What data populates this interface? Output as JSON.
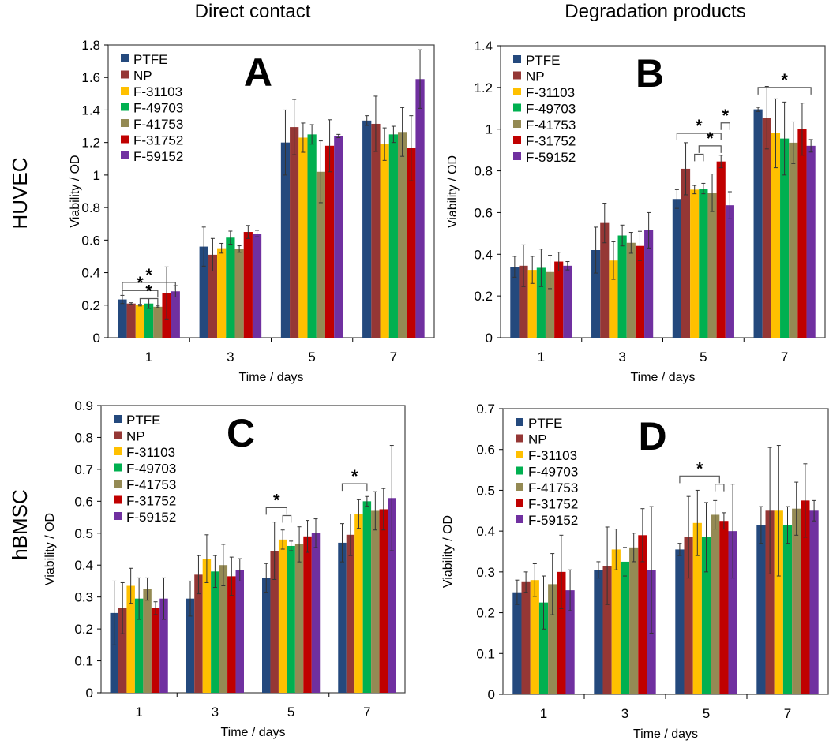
{
  "column_titles": [
    "Direct contact",
    "Degradation products"
  ],
  "row_titles": [
    "HUVEC",
    "hBMSC"
  ],
  "series_colors": {
    "PTFE": "#24497d",
    "NP": "#953735",
    "F-31103": "#ffc000",
    "F-49703": "#00b050",
    "F-41753": "#948a54",
    "F-31752": "#c00000",
    "F-59152": "#7030a0"
  },
  "chart_data": [
    {
      "type": "bar",
      "panel_label": "A",
      "xlabel": "Time / days",
      "ylabel": "Viability / OD",
      "categories": [
        "1",
        "3",
        "5",
        "7"
      ],
      "ylim": [
        0,
        1.8
      ],
      "yticks": [
        "0",
        "0.2",
        "0.4",
        "0.6",
        "0.8",
        "1",
        "1.2",
        "1.4",
        "1.6",
        "1.8"
      ],
      "legend": "top-left",
      "series": [
        {
          "name": "PTFE",
          "values": [
            0.235,
            0.56,
            1.2,
            1.335
          ],
          "errors": [
            0.025,
            0.12,
            0.2,
            0.03
          ]
        },
        {
          "name": "NP",
          "values": [
            0.21,
            0.51,
            1.295,
            1.315
          ],
          "errors": [
            0.005,
            0.1,
            0.17,
            0.17
          ]
        },
        {
          "name": "F-31103",
          "values": [
            0.2,
            0.55,
            1.23,
            1.19
          ],
          "errors": [
            0.005,
            0.03,
            0.09,
            0.1
          ]
        },
        {
          "name": "F-49703",
          "values": [
            0.21,
            0.615,
            1.25,
            1.25
          ],
          "errors": [
            0.03,
            0.04,
            0.06,
            0.05
          ]
        },
        {
          "name": "F-41753",
          "values": [
            0.19,
            0.545,
            1.02,
            1.265
          ],
          "errors": [
            0.005,
            0.02,
            0.19,
            0.15
          ]
        },
        {
          "name": "F-31752",
          "values": [
            0.275,
            0.65,
            1.18,
            1.165
          ],
          "errors": [
            0.16,
            0.04,
            0.16,
            0.2
          ]
        },
        {
          "name": "F-59152",
          "values": [
            0.285,
            0.64,
            1.24,
            1.59
          ],
          "errors": [
            0.035,
            0.02,
            0.01,
            0.18
          ]
        }
      ],
      "significance": [
        {
          "group": 0,
          "from": 0,
          "to": 6,
          "y": 0.34,
          "label": "*"
        },
        {
          "group": 0,
          "from": 0,
          "to": 4,
          "y": 0.29,
          "label": "*"
        },
        {
          "group": 0,
          "from": 2,
          "to": 4,
          "y": 0.24,
          "label": "*"
        }
      ]
    },
    {
      "type": "bar",
      "panel_label": "B",
      "xlabel": "Time / days",
      "ylabel": "Viability / OD",
      "categories": [
        "1",
        "3",
        "5",
        "7"
      ],
      "ylim": [
        0,
        1.4
      ],
      "yticks": [
        "0",
        "0.2",
        "0.4",
        "0.6",
        "0.8",
        "1",
        "1.2",
        "1.4"
      ],
      "legend": "top-left",
      "series": [
        {
          "name": "PTFE",
          "values": [
            0.34,
            0.42,
            0.665,
            1.095
          ],
          "errors": [
            0.05,
            0.11,
            0.045,
            0.01
          ]
        },
        {
          "name": "NP",
          "values": [
            0.345,
            0.55,
            0.81,
            1.055
          ],
          "errors": [
            0.1,
            0.095,
            0.125,
            0.15
          ]
        },
        {
          "name": "F-31103",
          "values": [
            0.325,
            0.37,
            0.71,
            0.98
          ],
          "errors": [
            0.065,
            0.09,
            0.02,
            0.165
          ]
        },
        {
          "name": "F-49703",
          "values": [
            0.335,
            0.49,
            0.715,
            0.955
          ],
          "errors": [
            0.09,
            0.05,
            0.025,
            0.175
          ]
        },
        {
          "name": "F-41753",
          "values": [
            0.315,
            0.455,
            0.695,
            0.935
          ],
          "errors": [
            0.08,
            0.05,
            0.09,
            0.1
          ]
        },
        {
          "name": "F-31752",
          "values": [
            0.365,
            0.44,
            0.845,
            1.0
          ],
          "errors": [
            0.045,
            0.07,
            0.03,
            0.125
          ]
        },
        {
          "name": "F-59152",
          "values": [
            0.345,
            0.515,
            0.635,
            0.92
          ],
          "errors": [
            0.02,
            0.085,
            0.065,
            0.03
          ]
        }
      ],
      "significance": [
        {
          "group": 2,
          "from": 0,
          "to": 5,
          "y": 0.98,
          "label": "*"
        },
        {
          "group": 2,
          "from": 2,
          "to": 3,
          "y": 0.88,
          "label": ""
        },
        {
          "group": 2,
          "from": 2.5,
          "to": 5,
          "y": 0.92,
          "label": "*"
        },
        {
          "group": 2,
          "from": 5,
          "to": 6,
          "y": 1.03,
          "label": "*"
        },
        {
          "group": 3,
          "from": 0,
          "to": 6,
          "y": 1.2,
          "label": "*"
        }
      ]
    },
    {
      "type": "bar",
      "panel_label": "C",
      "xlabel": "Time / days",
      "ylabel": "Viability / OD",
      "categories": [
        "1",
        "3",
        "5",
        "7"
      ],
      "ylim": [
        0,
        0.9
      ],
      "yticks": [
        "0",
        "0.1",
        "0.2",
        "0.3",
        "0.4",
        "0.5",
        "0.6",
        "0.7",
        "0.8",
        "0.9"
      ],
      "legend": "top-left",
      "series": [
        {
          "name": "PTFE",
          "values": [
            0.25,
            0.295,
            0.36,
            0.47
          ],
          "errors": [
            0.1,
            0.055,
            0.045,
            0.06
          ]
        },
        {
          "name": "NP",
          "values": [
            0.265,
            0.37,
            0.445,
            0.495
          ],
          "errors": [
            0.08,
            0.06,
            0.09,
            0.065
          ]
        },
        {
          "name": "F-31103",
          "values": [
            0.335,
            0.42,
            0.48,
            0.56
          ],
          "errors": [
            0.055,
            0.075,
            0.03,
            0.045
          ]
        },
        {
          "name": "F-49703",
          "values": [
            0.295,
            0.38,
            0.46,
            0.6
          ],
          "errors": [
            0.065,
            0.05,
            0.015,
            0.015
          ]
        },
        {
          "name": "F-41753",
          "values": [
            0.325,
            0.4,
            0.465,
            0.57
          ],
          "errors": [
            0.035,
            0.065,
            0.055,
            0.06
          ]
        },
        {
          "name": "F-31752",
          "values": [
            0.265,
            0.365,
            0.49,
            0.575
          ],
          "errors": [
            0.02,
            0.06,
            0.05,
            0.065
          ]
        },
        {
          "name": "F-59152",
          "values": [
            0.295,
            0.385,
            0.5,
            0.61
          ],
          "errors": [
            0.065,
            0.035,
            0.045,
            0.165
          ]
        }
      ],
      "significance": [
        {
          "group": 2,
          "from": 0,
          "to": 2.5,
          "y": 0.58,
          "label": "*"
        },
        {
          "group": 2,
          "from": 2,
          "to": 3,
          "y": 0.555,
          "label": ""
        },
        {
          "group": 3,
          "from": 0,
          "to": 3,
          "y": 0.655,
          "label": "*"
        }
      ]
    },
    {
      "type": "bar",
      "panel_label": "D",
      "xlabel": "Time / days",
      "ylabel": "Viability / OD",
      "categories": [
        "1",
        "3",
        "5",
        "7"
      ],
      "ylim": [
        0,
        0.7
      ],
      "yticks": [
        "0",
        "0.1",
        "0.2",
        "0.3",
        "0.4",
        "0.5",
        "0.6",
        "0.7"
      ],
      "legend": "top-left",
      "series": [
        {
          "name": "PTFE",
          "values": [
            0.25,
            0.305,
            0.355,
            0.415
          ],
          "errors": [
            0.03,
            0.02,
            0.015,
            0.045
          ]
        },
        {
          "name": "NP",
          "values": [
            0.275,
            0.315,
            0.385,
            0.45
          ],
          "errors": [
            0.025,
            0.095,
            0.1,
            0.155
          ]
        },
        {
          "name": "F-31103",
          "values": [
            0.28,
            0.355,
            0.42,
            0.45
          ],
          "errors": [
            0.04,
            0.05,
            0.08,
            0.16
          ]
        },
        {
          "name": "F-49703",
          "values": [
            0.225,
            0.325,
            0.385,
            0.415
          ],
          "errors": [
            0.065,
            0.035,
            0.085,
            0.045
          ]
        },
        {
          "name": "F-41753",
          "values": [
            0.27,
            0.36,
            0.44,
            0.455
          ],
          "errors": [
            0.075,
            0.035,
            0.035,
            0.065
          ]
        },
        {
          "name": "F-31752",
          "values": [
            0.3,
            0.39,
            0.425,
            0.475
          ],
          "errors": [
            0.09,
            0.065,
            0.02,
            0.09
          ]
        },
        {
          "name": "F-59152",
          "values": [
            0.255,
            0.305,
            0.4,
            0.45
          ],
          "errors": [
            0.05,
            0.155,
            0.115,
            0.025
          ]
        }
      ],
      "significance": [
        {
          "group": 2,
          "from": 0,
          "to": 4.5,
          "y": 0.535,
          "label": "*"
        },
        {
          "group": 2,
          "from": 4,
          "to": 5,
          "y": 0.515,
          "label": ""
        }
      ]
    }
  ]
}
